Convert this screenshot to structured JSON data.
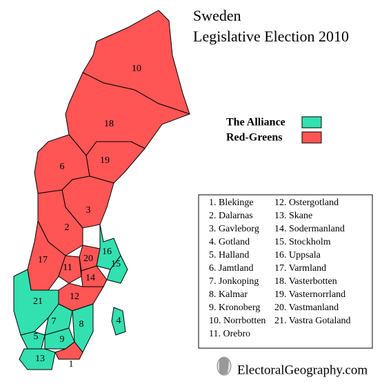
{
  "title": [
    "Sweden",
    "Legislative Election 2010"
  ],
  "legend": [
    {
      "label": "The Alliance",
      "color": "#33e0b0"
    },
    {
      "label": "Red-Greens",
      "color": "#ff5555"
    }
  ],
  "regions": [
    {
      "label": "10",
      "color": "#ff5555"
    },
    {
      "label": "18",
      "color": "#ff5555"
    },
    {
      "label": "6",
      "color": "#ff5555"
    },
    {
      "label": "19",
      "color": "#ff5555"
    },
    {
      "label": "3",
      "color": "#ff5555"
    },
    {
      "label": "2",
      "color": "#ff5555"
    },
    {
      "label": "17",
      "color": "#ff5555"
    },
    {
      "label": "11",
      "color": "#ff5555"
    },
    {
      "label": "20",
      "color": "#ff5555"
    },
    {
      "label": "16",
      "color": "#33e0b0"
    },
    {
      "label": "15",
      "color": "#33e0b0"
    },
    {
      "label": "14",
      "color": "#ff5555"
    },
    {
      "label": "12",
      "color": "#ff5555"
    },
    {
      "label": "21",
      "color": "#33e0b0"
    },
    {
      "label": "7",
      "color": "#33e0b0"
    },
    {
      "label": "8",
      "color": "#33e0b0"
    },
    {
      "label": "5",
      "color": "#33e0b0"
    },
    {
      "label": "9",
      "color": "#33e0b0"
    },
    {
      "label": "13",
      "color": "#33e0b0"
    },
    {
      "label": "1",
      "color": "#ff5555"
    },
    {
      "label": "4",
      "color": "#33e0b0"
    }
  ],
  "key": [
    "1. Blekinge",
    "2. Dalarnas",
    "3. Gavleborg",
    "4. Gotland",
    "5. Halland",
    "6. Jamtland",
    "7. Jonkoping",
    "8. Kalmar",
    "9. Kronoberg",
    "10. Norrbotten",
    "11. Orebro",
    "12. Ostergotland",
    "13. Skane",
    "14. Sodermanland",
    "15. Stockholm",
    "16. Uppsala",
    "17. Varmland",
    "18. Vasterbotten",
    "19. Vasternorrland",
    "20. Vastmanland",
    "21. Vastra Gotaland"
  ],
  "footer": "ElectoralGeography.com"
}
